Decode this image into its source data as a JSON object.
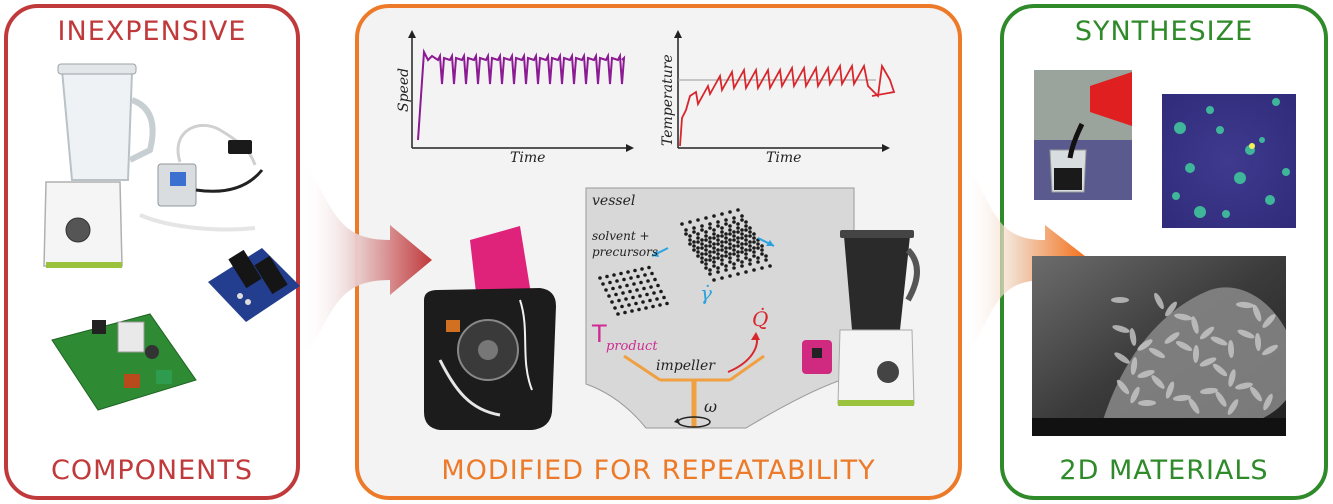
{
  "panels": {
    "left": {
      "top_heading": "INEXPENSIVE",
      "bottom_heading": "COMPONENTS",
      "color": "#c0393b"
    },
    "middle": {
      "bottom_heading": "MODIFIED FOR REPEATABILITY",
      "color": "#ec7a28"
    },
    "right": {
      "top_heading": "SYNTHESIZE",
      "bottom_heading": "2D MATERIALS",
      "color": "#2f8a2a"
    }
  },
  "plots": {
    "speed": {
      "ylabel": "Speed",
      "xlabel": "Time",
      "color": "#8b1a93"
    },
    "temperature": {
      "ylabel": "Temperature",
      "xlabel": "Time",
      "color": "#d9262c"
    }
  },
  "vessel": {
    "title": "vessel",
    "solvent_label": "solvent +",
    "precursors_label": "precursors",
    "shear_symbol": "γ̇",
    "heat_symbol": "Q̇",
    "temp_symbol": "T",
    "temp_sub": "product",
    "impeller_label": "impeller",
    "omega_symbol": "ω"
  }
}
